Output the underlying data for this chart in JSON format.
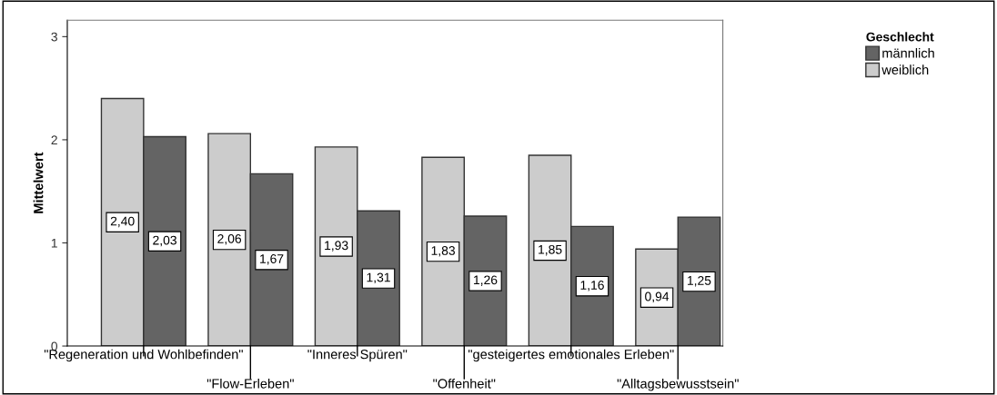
{
  "chart_data": {
    "type": "bar",
    "ylabel": "Mittelwert",
    "legend_title": "Geschlecht",
    "legend": "top right",
    "grid": false,
    "categories": [
      "\"Regeneration und Wohlbefinden\"",
      "\"Flow-Erleben\"",
      "\"Inneres Spüren\"",
      "\"Offenheit\"",
      "\"gesteigertes emotionales Erleben\"",
      "\"Alltagsbewusstsein\""
    ],
    "series": [
      {
        "name": "weiblich",
        "color": "#cccccc",
        "values": [
          2.4,
          2.06,
          1.93,
          1.83,
          1.85,
          0.94
        ],
        "value_labels": [
          "2,40",
          "2,06",
          "1,93",
          "1,83",
          "1,85",
          "0,94"
        ]
      },
      {
        "name": "männlich",
        "color": "#646464",
        "values": [
          2.03,
          1.67,
          1.31,
          1.26,
          1.16,
          1.25
        ],
        "value_labels": [
          "2,03",
          "1,67",
          "1,31",
          "1,26",
          "1,16",
          "1,25"
        ]
      }
    ],
    "ylim": [
      0,
      3.16
    ],
    "yticks": [
      0,
      1,
      2,
      3
    ]
  }
}
